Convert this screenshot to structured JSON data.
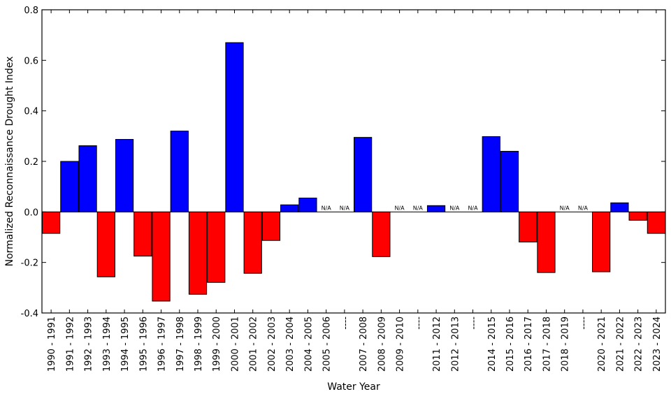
{
  "chart_data": {
    "type": "bar",
    "title": "",
    "xlabel": "Water Year",
    "ylabel": "Normalized Reconnaissance Drought Index",
    "ylim": [
      -0.4,
      0.8
    ],
    "yticks": [
      "-0.4",
      "-0.2",
      "0.0",
      "0.2",
      "0.4",
      "0.6",
      "0.8"
    ],
    "grid": false,
    "positive_color": "#0000ff",
    "negative_color": "#ff0000",
    "missing_label": "N/A",
    "categories": [
      "1990 - 1991",
      "1991 - 1992",
      "1992 - 1993",
      "1993 - 1994",
      "1994 - 1995",
      "1995 - 1996",
      "1996 - 1997",
      "1997 - 1998",
      "1998 - 1999",
      "1999 - 2000",
      "2000 - 2001",
      "2001 - 2002",
      "2002 - 2003",
      "2003 - 2004",
      "2004 - 2005",
      "2005 - 2006",
      "----",
      "2007 - 2008",
      "2008 - 2009",
      "2009 - 2010",
      "----",
      "2011 - 2012",
      "2012 - 2013",
      "----",
      "2014 - 2015",
      "2015 - 2016",
      "2016 - 2017",
      "2017 - 2018",
      "2018 - 2019",
      "----",
      "2020 - 2021",
      "2021 - 2022",
      "2022 - 2023",
      "2023 - 2024"
    ],
    "values": [
      -0.085,
      0.2,
      0.262,
      -0.257,
      0.287,
      -0.175,
      -0.353,
      0.32,
      -0.326,
      -0.279,
      0.67,
      -0.243,
      -0.113,
      0.028,
      0.055,
      null,
      null,
      0.295,
      -0.177,
      null,
      null,
      0.025,
      null,
      null,
      0.298,
      0.24,
      -0.119,
      -0.24,
      null,
      null,
      -0.237,
      0.036,
      -0.033,
      -0.085
    ]
  }
}
